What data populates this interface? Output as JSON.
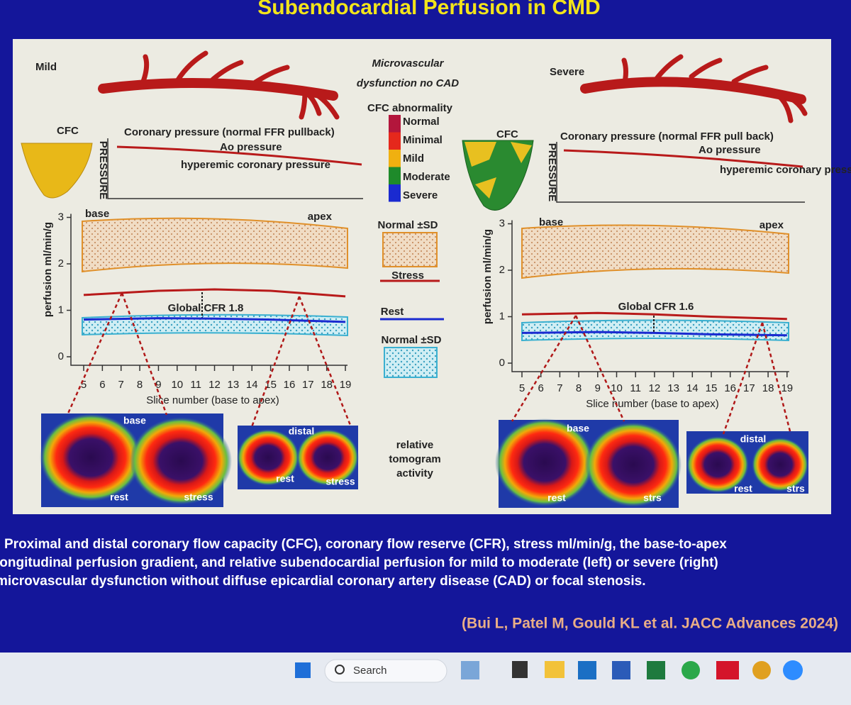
{
  "slide": {
    "title": "Subendocardial Perfusion in CMD",
    "caption": [
      "Proximal and distal coronary flow capacity (CFC), coronary flow reserve (CFR), stress ml/min/g, the base-to-apex",
      "longitudinal perfusion gradient, and relative subendocardial perfusion for mild to moderate (left) or severe (right)",
      "microvascular dysfunction without diffuse epicardial coronary artery disease (CAD) or focal stenosis."
    ],
    "citation": "(Bui L, Patel M, Gould KL et al. JACC Advances 2024)"
  },
  "figure": {
    "center": {
      "heading": [
        "Microvascular",
        "dysfunction no CAD"
      ],
      "cfc_legend_title": "CFC abnormality",
      "cfc_legend": [
        {
          "label": "Normal",
          "color": "#b3163c"
        },
        {
          "label": "Minimal",
          "color": "#e5281c"
        },
        {
          "label": "Mild",
          "color": "#f0b010"
        },
        {
          "label": "Moderate",
          "color": "#1e8a2a"
        },
        {
          "label": "Severe",
          "color": "#1a2ad0"
        }
      ],
      "normal_sd_stress": "Normal ±SD",
      "stress": "Stress",
      "rest": "Rest",
      "normal_sd_rest": "Normal ±SD",
      "tomogram_note": [
        "relative",
        "tomogram",
        "activity"
      ]
    },
    "panels": [
      {
        "severity": "Mild",
        "cfc": "CFC",
        "pressure_title": "Coronary pressure (normal FFR pullback)",
        "ao_pressure": "Ao pressure",
        "hyperemic_pressure": "hyperemic coronary pressure",
        "pressure_axis": "PRESSURE",
        "chart": {
          "ylabel": "perfusion ml/min/g",
          "xlabel": "Slice number (base to apex)",
          "yticks": [
            0,
            1,
            2,
            3
          ],
          "xticks": [
            5,
            6,
            7,
            8,
            9,
            10,
            11,
            12,
            13,
            14,
            15,
            16,
            17,
            18,
            19
          ],
          "base": "base",
          "apex": "apex",
          "cfr": "Global CFR 1.8",
          "slices": [
            5,
            9,
            12,
            15,
            19
          ],
          "stress": [
            1.33,
            1.42,
            1.45,
            1.42,
            1.3
          ],
          "rest": [
            0.8,
            0.83,
            0.82,
            0.8,
            0.75
          ]
        },
        "tomogram_labels": [
          "base",
          "rest",
          "stress",
          "distal",
          "rest",
          "stress"
        ]
      },
      {
        "severity": "Severe",
        "cfc": "CFC",
        "pressure_title": "Coronary pressure (normal FFR pull back)",
        "ao_pressure": "Ao pressure",
        "hyperemic_pressure": "hyperemic coronary pressure",
        "pressure_axis": "PRESSURE",
        "chart": {
          "ylabel": "perfusion ml/min/g",
          "xlabel": "Slice number (base to apex)",
          "yticks": [
            0,
            1,
            2,
            3
          ],
          "xticks": [
            5,
            6,
            7,
            8,
            9,
            10,
            11,
            12,
            13,
            14,
            15,
            16,
            17,
            18,
            19
          ],
          "base": "base",
          "apex": "apex",
          "cfr": "Global CFR 1.6",
          "slices": [
            5,
            9,
            12,
            15,
            19
          ],
          "stress": [
            1.05,
            1.08,
            1.05,
            1.0,
            0.95
          ],
          "rest": [
            0.65,
            0.67,
            0.65,
            0.62,
            0.6
          ]
        },
        "tomogram_labels": [
          "base",
          "rest",
          "strs",
          "distal",
          "rest",
          "strs"
        ]
      }
    ]
  },
  "taskbar": {
    "search": "Search"
  }
}
